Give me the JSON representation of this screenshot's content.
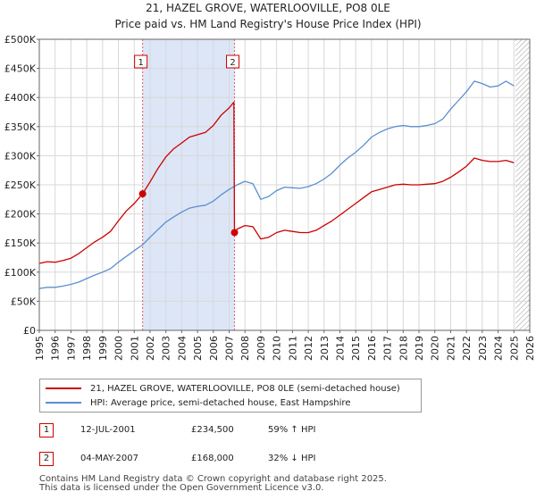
{
  "title_line1": "21, HAZEL GROVE, WATERLOOVILLE, PO8 0LE",
  "title_line2": "Price paid vs. HM Land Registry's House Price Index (HPI)",
  "colors": {
    "property": "#cc0000",
    "hpi": "#5b8fd0",
    "shade": "#dce6f7",
    "grid": "#d8d8d8",
    "marker_line": "#e06060",
    "hatch": "#999999"
  },
  "chart_data": {
    "type": "line",
    "xlim": [
      1995,
      2026
    ],
    "ylim": [
      0,
      500000
    ],
    "x_ticks": [
      1995,
      1996,
      1997,
      1998,
      1999,
      2000,
      2001,
      2002,
      2003,
      2004,
      2005,
      2006,
      2007,
      2008,
      2009,
      2010,
      2011,
      2012,
      2013,
      2014,
      2015,
      2016,
      2017,
      2018,
      2019,
      2020,
      2021,
      2022,
      2023,
      2024,
      2025,
      2026
    ],
    "y_ticks": [
      {
        "value": 0,
        "label": "£0"
      },
      {
        "value": 50000,
        "label": "£50K"
      },
      {
        "value": 100000,
        "label": "£100K"
      },
      {
        "value": 150000,
        "label": "£150K"
      },
      {
        "value": 200000,
        "label": "£200K"
      },
      {
        "value": 250000,
        "label": "£250K"
      },
      {
        "value": 300000,
        "label": "£300K"
      },
      {
        "value": 350000,
        "label": "£350K"
      },
      {
        "value": 400000,
        "label": "£400K"
      },
      {
        "value": 450000,
        "label": "£450K"
      },
      {
        "value": 500000,
        "label": "£500K"
      }
    ],
    "shaded_period": [
      2001.53,
      2007.34
    ],
    "future_hatch_from": 2025.1,
    "sales": [
      {
        "label": "1",
        "x": 2001.53,
        "y": 234500
      },
      {
        "label": "2",
        "x": 2007.34,
        "y": 168000
      }
    ],
    "series": [
      {
        "name": "21, HAZEL GROVE, WATERLOOVILLE, PO8 0LE (semi-detached house)",
        "color": "#cc0000",
        "points": [
          [
            1995,
            115000
          ],
          [
            1995.5,
            118000
          ],
          [
            1996,
            117000
          ],
          [
            1996.5,
            120000
          ],
          [
            1997,
            124000
          ],
          [
            1997.5,
            132000
          ],
          [
            1998,
            142000
          ],
          [
            1998.5,
            152000
          ],
          [
            1999,
            160000
          ],
          [
            1999.5,
            170000
          ],
          [
            2000,
            188000
          ],
          [
            2000.5,
            205000
          ],
          [
            2001,
            218000
          ],
          [
            2001.53,
            234500
          ],
          [
            2002,
            255000
          ],
          [
            2002.5,
            278000
          ],
          [
            2003,
            298000
          ],
          [
            2003.5,
            312000
          ],
          [
            2004,
            322000
          ],
          [
            2004.5,
            332000
          ],
          [
            2005,
            336000
          ],
          [
            2005.5,
            340000
          ],
          [
            2006,
            352000
          ],
          [
            2006.5,
            370000
          ],
          [
            2007,
            382000
          ],
          [
            2007.3,
            392000
          ],
          [
            2007.34,
            168000
          ],
          [
            2007.5,
            174000
          ],
          [
            2008,
            180000
          ],
          [
            2008.5,
            178000
          ],
          [
            2009,
            157000
          ],
          [
            2009.5,
            160000
          ],
          [
            2010,
            168000
          ],
          [
            2010.5,
            172000
          ],
          [
            2011,
            170000
          ],
          [
            2011.5,
            168000
          ],
          [
            2012,
            168000
          ],
          [
            2012.5,
            172000
          ],
          [
            2013,
            180000
          ],
          [
            2013.5,
            188000
          ],
          [
            2014,
            198000
          ],
          [
            2014.5,
            208000
          ],
          [
            2015,
            218000
          ],
          [
            2015.5,
            228000
          ],
          [
            2016,
            238000
          ],
          [
            2016.5,
            242000
          ],
          [
            2017,
            246000
          ],
          [
            2017.5,
            250000
          ],
          [
            2018,
            251000
          ],
          [
            2018.5,
            250000
          ],
          [
            2019,
            250000
          ],
          [
            2019.5,
            251000
          ],
          [
            2020,
            252000
          ],
          [
            2020.5,
            256000
          ],
          [
            2021,
            263000
          ],
          [
            2021.5,
            272000
          ],
          [
            2022,
            282000
          ],
          [
            2022.5,
            296000
          ],
          [
            2023,
            292000
          ],
          [
            2023.5,
            290000
          ],
          [
            2024,
            290000
          ],
          [
            2024.5,
            292000
          ],
          [
            2025,
            288000
          ]
        ]
      },
      {
        "name": "HPI: Average price, semi-detached house, East Hampshire",
        "color": "#5b8fd0",
        "points": [
          [
            1995,
            72000
          ],
          [
            1995.5,
            74000
          ],
          [
            1996,
            74000
          ],
          [
            1996.5,
            76000
          ],
          [
            1997,
            79000
          ],
          [
            1997.5,
            83000
          ],
          [
            1998,
            89000
          ],
          [
            1998.5,
            95000
          ],
          [
            1999,
            100000
          ],
          [
            1999.5,
            106000
          ],
          [
            2000,
            117000
          ],
          [
            2000.5,
            127000
          ],
          [
            2001,
            137000
          ],
          [
            2001.53,
            147000
          ],
          [
            2002,
            160000
          ],
          [
            2002.5,
            173000
          ],
          [
            2003,
            186000
          ],
          [
            2003.5,
            195000
          ],
          [
            2004,
            203000
          ],
          [
            2004.5,
            210000
          ],
          [
            2005,
            213000
          ],
          [
            2005.5,
            215000
          ],
          [
            2006,
            222000
          ],
          [
            2006.5,
            233000
          ],
          [
            2007,
            242000
          ],
          [
            2007.5,
            250000
          ],
          [
            2008,
            256000
          ],
          [
            2008.5,
            252000
          ],
          [
            2009,
            225000
          ],
          [
            2009.5,
            230000
          ],
          [
            2010,
            240000
          ],
          [
            2010.5,
            246000
          ],
          [
            2011,
            245000
          ],
          [
            2011.5,
            244000
          ],
          [
            2012,
            247000
          ],
          [
            2012.5,
            252000
          ],
          [
            2013,
            260000
          ],
          [
            2013.5,
            270000
          ],
          [
            2014,
            284000
          ],
          [
            2014.5,
            296000
          ],
          [
            2015,
            306000
          ],
          [
            2015.5,
            318000
          ],
          [
            2016,
            332000
          ],
          [
            2016.5,
            340000
          ],
          [
            2017,
            346000
          ],
          [
            2017.5,
            350000
          ],
          [
            2018,
            352000
          ],
          [
            2018.5,
            350000
          ],
          [
            2019,
            350000
          ],
          [
            2019.5,
            352000
          ],
          [
            2020,
            355000
          ],
          [
            2020.5,
            363000
          ],
          [
            2021,
            380000
          ],
          [
            2021.5,
            395000
          ],
          [
            2022,
            410000
          ],
          [
            2022.5,
            428000
          ],
          [
            2023,
            424000
          ],
          [
            2023.5,
            418000
          ],
          [
            2024,
            420000
          ],
          [
            2024.5,
            428000
          ],
          [
            2025,
            420000
          ]
        ]
      }
    ]
  },
  "legend": {
    "property": "21, HAZEL GROVE, WATERLOOVILLE, PO8 0LE (semi-detached house)",
    "hpi": "HPI: Average price, semi-detached house, East Hampshire"
  },
  "transactions": [
    {
      "num": "1",
      "date": "12-JUL-2001",
      "price": "£234,500",
      "hpi": "59% ↑ HPI"
    },
    {
      "num": "2",
      "date": "04-MAY-2007",
      "price": "£168,000",
      "hpi": "32% ↓ HPI"
    }
  ],
  "footer_line1": "Contains HM Land Registry data © Crown copyright and database right 2025.",
  "footer_line2": "This data is licensed under the Open Government Licence v3.0."
}
